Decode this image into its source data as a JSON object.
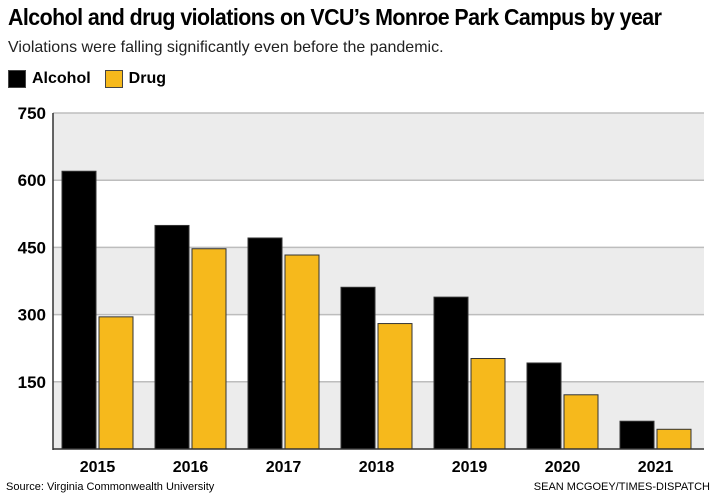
{
  "chart_data": {
    "type": "bar",
    "title": "Alcohol and drug violations on VCU’s Monroe Park Campus by year",
    "subtitle": "Violations were falling significantly even before the pandemic.",
    "categories": [
      "2015",
      "2016",
      "2017",
      "2018",
      "2019",
      "2020",
      "2021"
    ],
    "series": [
      {
        "name": "Alcohol",
        "color": "#000000",
        "values": [
          620,
          499,
          471,
          361,
          339,
          192,
          62
        ]
      },
      {
        "name": "Drug",
        "color": "#F6B91C",
        "values": [
          295,
          447,
          433,
          280,
          202,
          121,
          44
        ]
      }
    ],
    "yticks": [
      150,
      300,
      450,
      600,
      750
    ],
    "ylim": [
      0,
      750
    ],
    "xlabel": "",
    "ylabel": "",
    "grid": true,
    "legend_position": "top-left",
    "source": "Source: Virginia Commonwealth University",
    "credit": "SEAN MCGOEY/TIMES-DISPATCH"
  }
}
